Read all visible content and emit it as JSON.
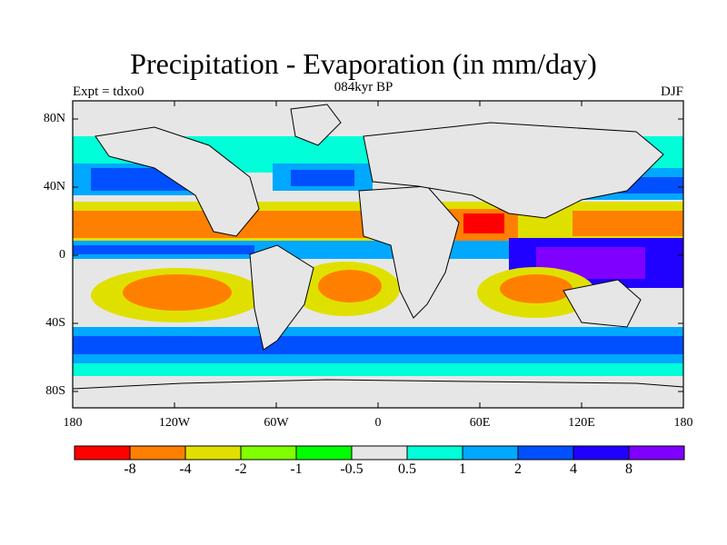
{
  "title": "Precipitation - Evaporation (in mm/day)",
  "subtitle": "084kyr BP",
  "experiment": "Expt = tdxo0",
  "season": "DJF",
  "lat_ticks": [
    "80N",
    "40N",
    "0",
    "40S",
    "80S"
  ],
  "lon_ticks": [
    "180",
    "120W",
    "60W",
    "0",
    "60E",
    "120E",
    "180"
  ],
  "colorbar": {
    "labels": [
      "-8",
      "-4",
      "-2",
      "-1",
      "-0.5",
      "0.5",
      "1",
      "2",
      "4",
      "8"
    ],
    "colors": [
      "#ff0000",
      "#ff8000",
      "#e0e000",
      "#80ff00",
      "#00ff00",
      "#e6e6e6",
      "#00ffd8",
      "#00a8ff",
      "#0050ff",
      "#2000ff",
      "#8000ff"
    ]
  }
}
